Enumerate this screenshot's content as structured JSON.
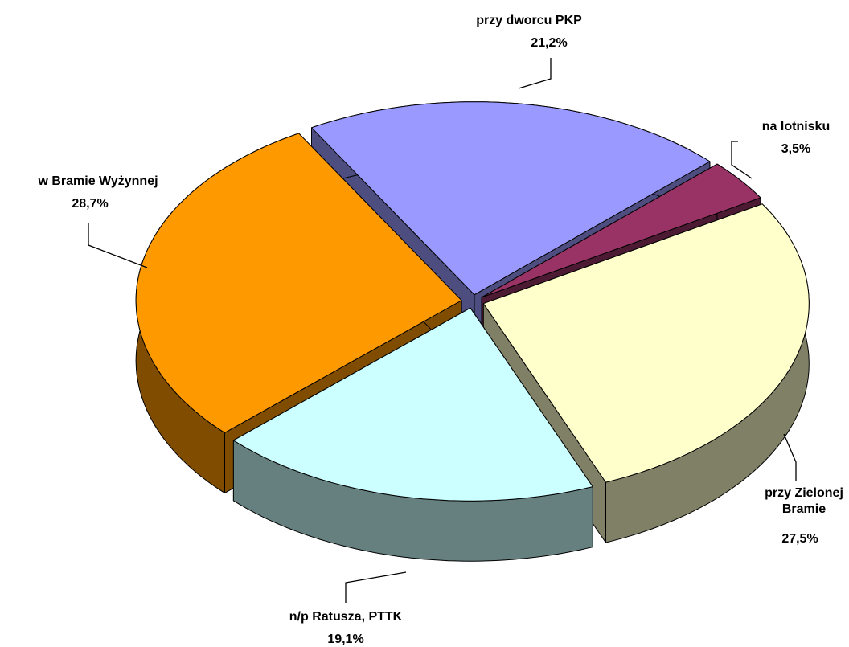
{
  "chart_data": {
    "type": "pie3d",
    "categories": [
      "przy dworcu PKP",
      "na lotnisku",
      "przy Zielonej Bramie",
      "n/p Ratusza, PTTK",
      "w Bramie Wyżynnej"
    ],
    "values": [
      21.2,
      3.5,
      27.5,
      19.1,
      28.7
    ],
    "value_labels": [
      "21,2%",
      "3,5%",
      "27,5%",
      "19,1%",
      "28,7%"
    ],
    "colors": [
      "#9999ff",
      "#993366",
      "#ffffcc",
      "#ccffff",
      "#ff9900"
    ]
  }
}
